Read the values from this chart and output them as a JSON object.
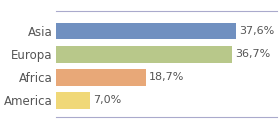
{
  "categories": [
    "America",
    "Africa",
    "Europa",
    "Asia"
  ],
  "values": [
    7.0,
    18.7,
    36.7,
    37.6
  ],
  "labels": [
    "7,0%",
    "18,7%",
    "36,7%",
    "37,6%"
  ],
  "bar_colors": [
    "#f0d878",
    "#e8a878",
    "#b8c88a",
    "#7090c0"
  ],
  "background_color": "#ffffff",
  "xlim": [
    0,
    46
  ],
  "bar_height": 0.72,
  "fontsize": 8.5,
  "label_fontsize": 8.0,
  "label_color": "#555555",
  "tick_color": "#555555",
  "border_color": "#aaaacc",
  "border_lw": 0.8
}
